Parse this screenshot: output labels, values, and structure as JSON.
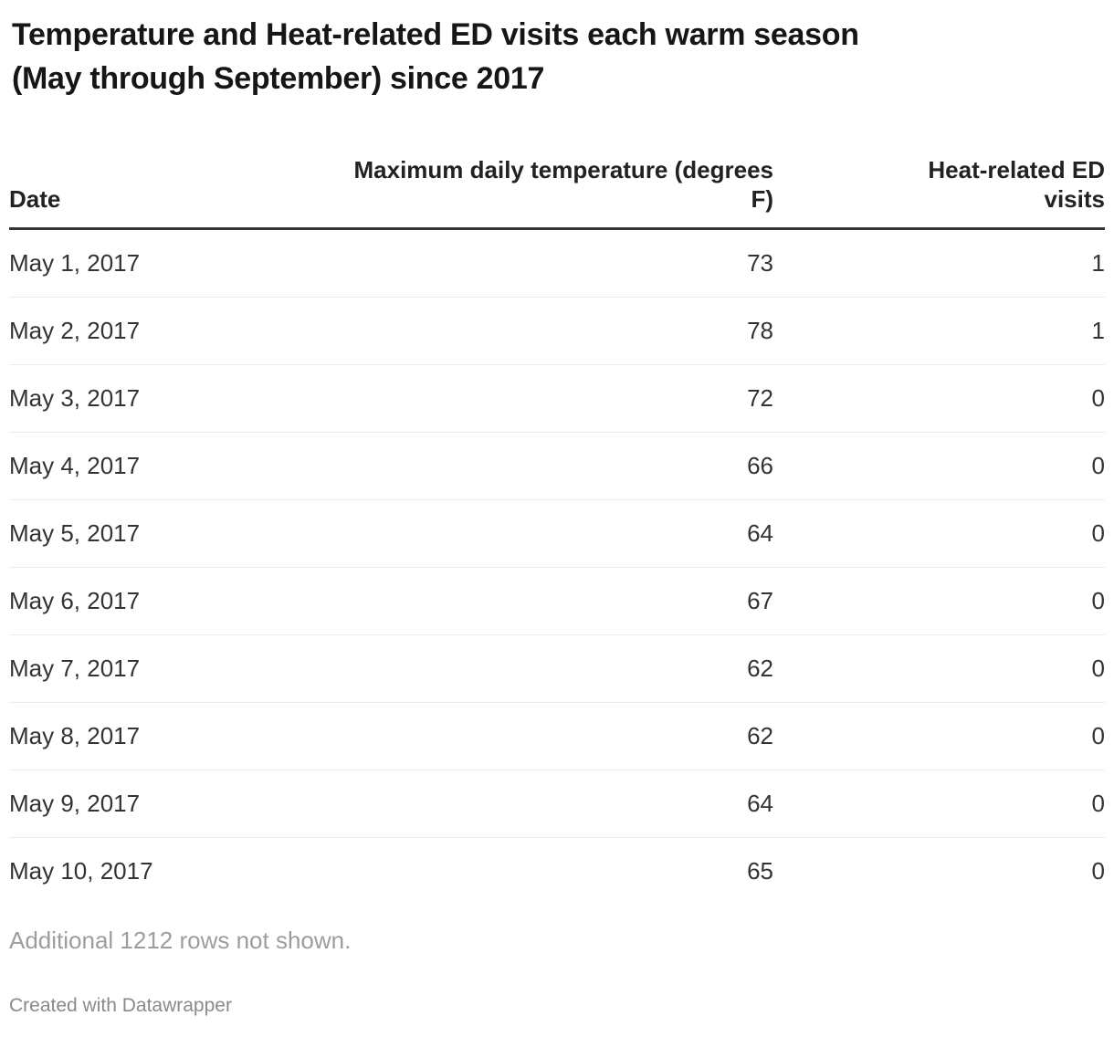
{
  "chart_data": {
    "type": "table",
    "title": "Temperature and Heat-related ED visits each warm season (May through September) since 2017",
    "columns": [
      "Date",
      "Maximum daily temperature (degrees F)",
      "Heat-related ED visits"
    ],
    "rows": [
      [
        "May 1, 2017",
        73,
        1
      ],
      [
        "May 2, 2017",
        78,
        1
      ],
      [
        "May 3, 2017",
        72,
        0
      ],
      [
        "May 4, 2017",
        66,
        0
      ],
      [
        "May 5, 2017",
        64,
        0
      ],
      [
        "May 6, 2017",
        67,
        0
      ],
      [
        "May 7, 2017",
        62,
        0
      ],
      [
        "May 8, 2017",
        62,
        0
      ],
      [
        "May 9, 2017",
        64,
        0
      ],
      [
        "May 10, 2017",
        65,
        0
      ]
    ],
    "note": "Additional 1212 rows not shown."
  },
  "title_lines": [
    "Temperature and Heat-related ED visits each warm season",
    "(May through September) since 2017"
  ],
  "footer": {
    "attribution": "Created with Datawrapper"
  },
  "colors": {
    "background": "#ffffff",
    "title_text": "#161616",
    "body_text": "#333333",
    "header_rule": "#333333",
    "row_separator": "#ececec",
    "note_text": "#9d9d9d",
    "attribution_text": "#8a8a8a"
  }
}
